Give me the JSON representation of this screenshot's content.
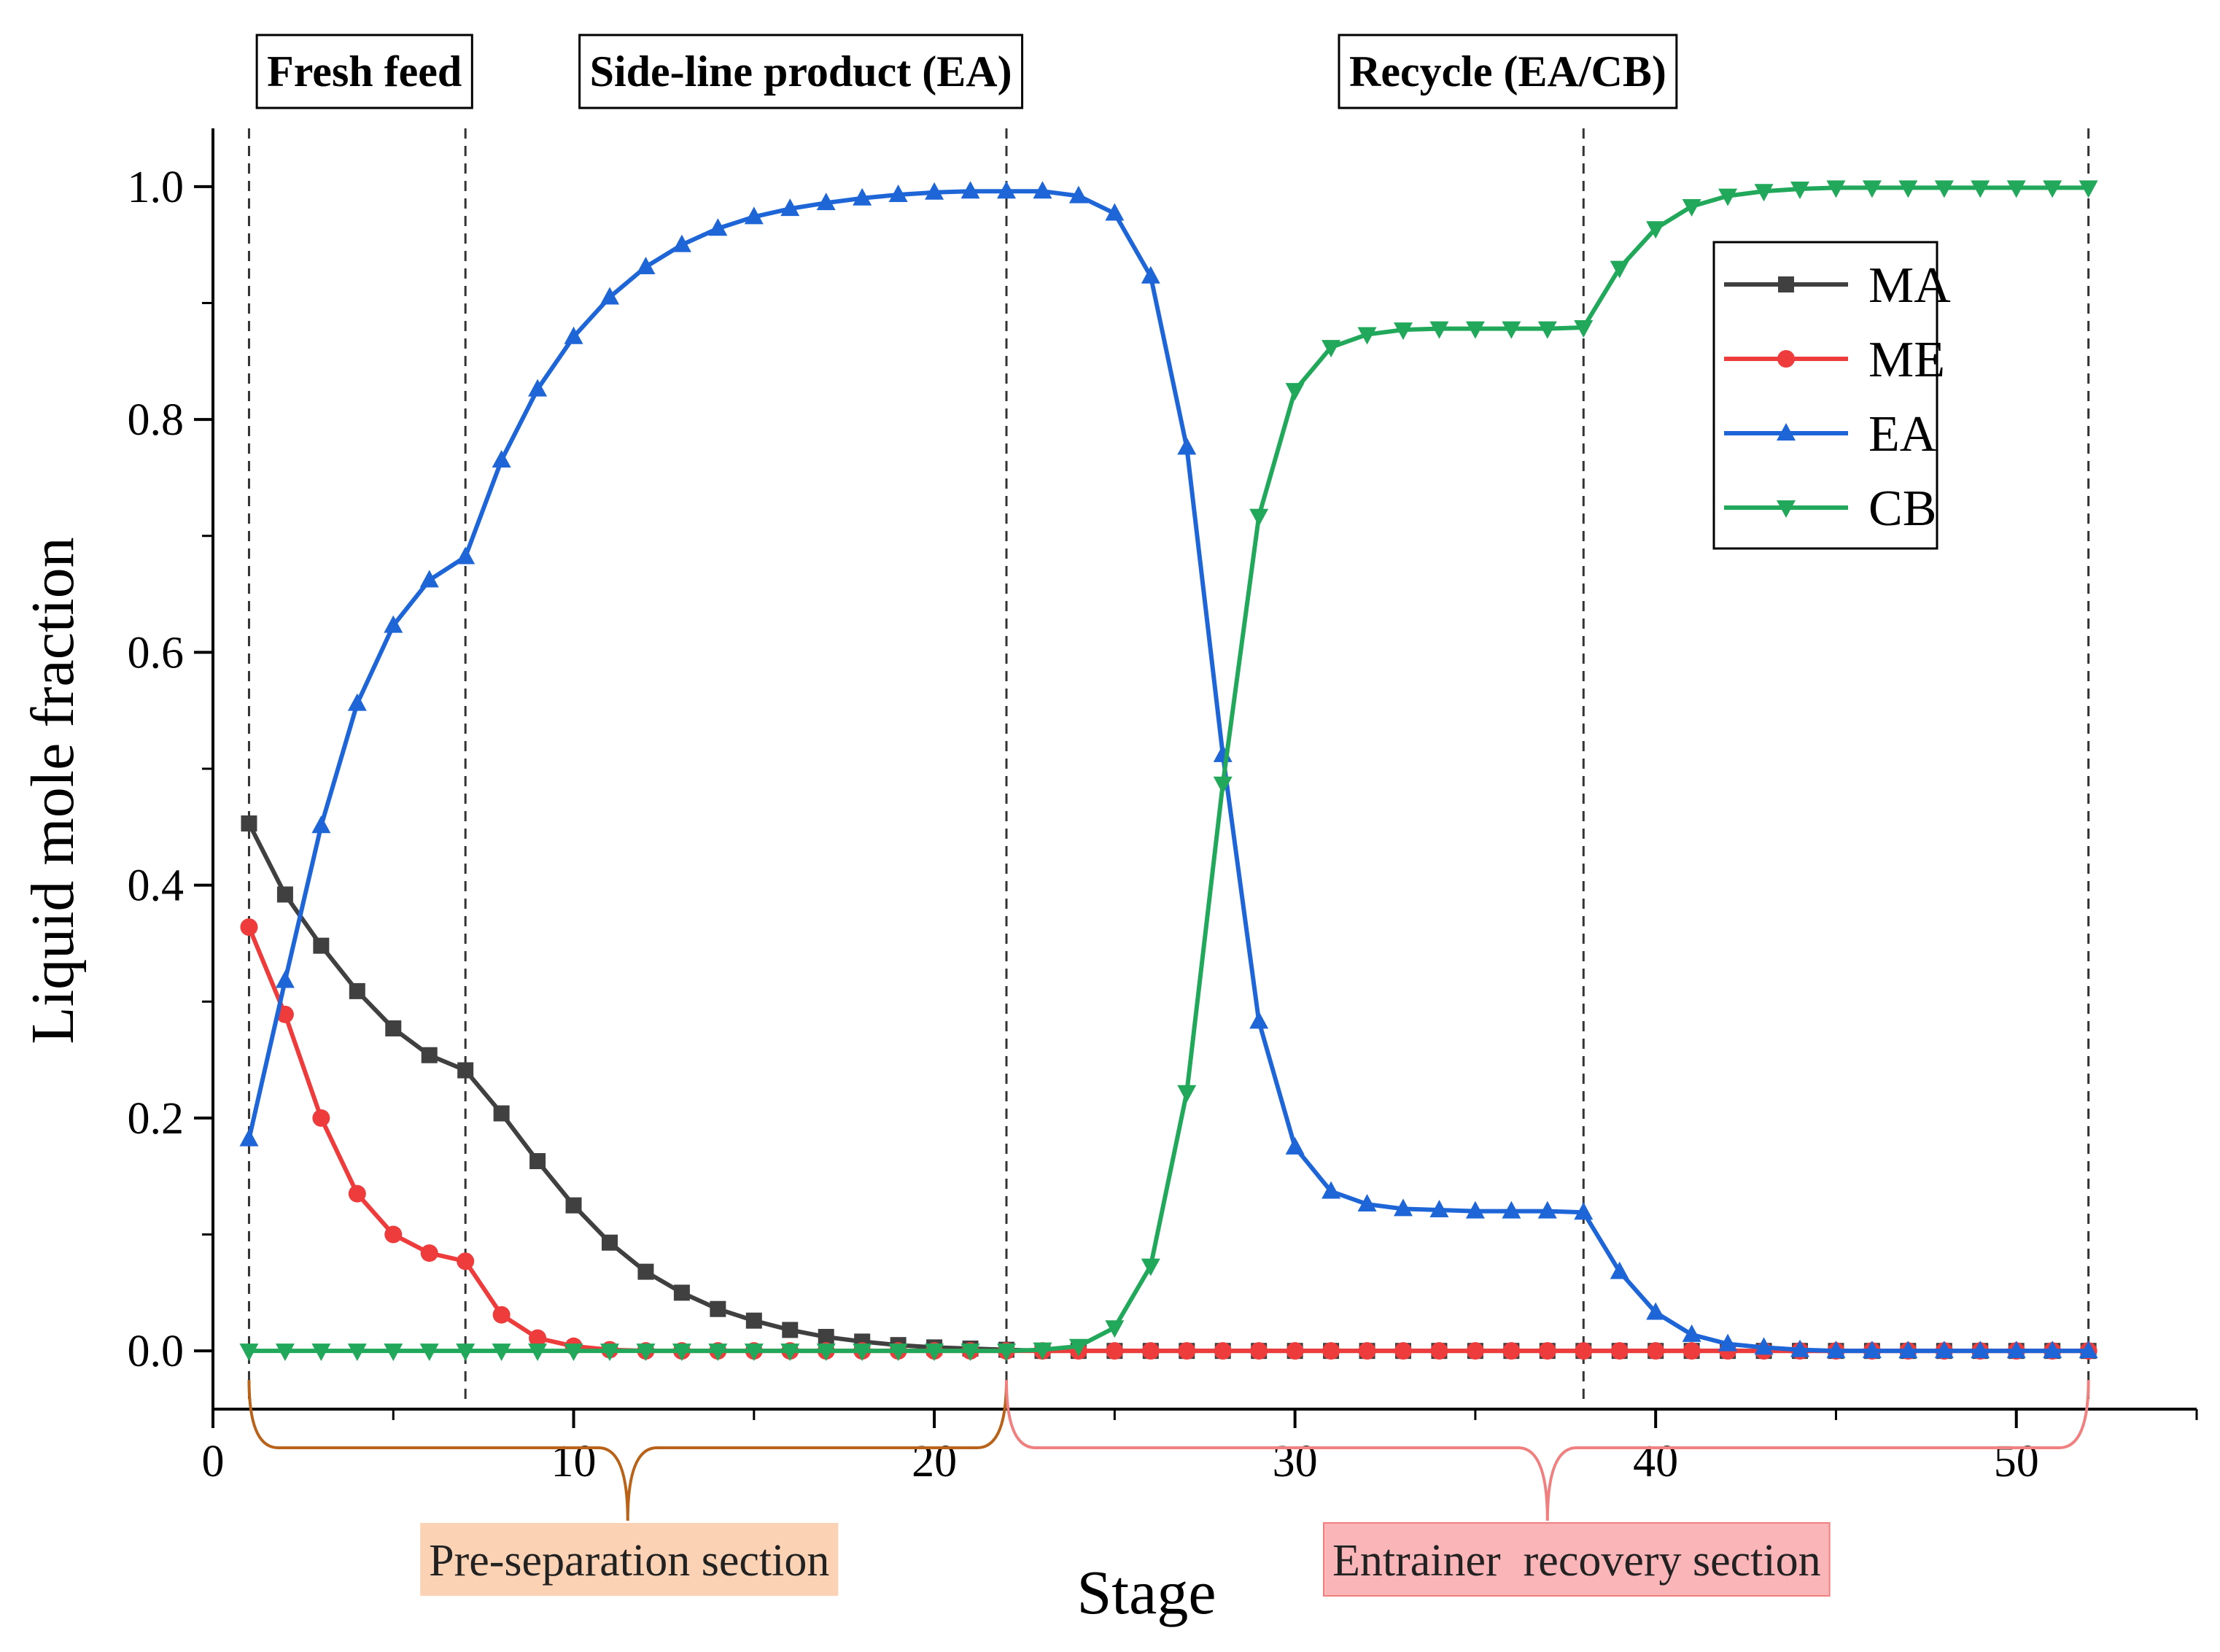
{
  "chart_data": {
    "type": "line",
    "xlabel": "Stage",
    "ylabel": "Liquid mole fraction",
    "xlim": [
      0,
      55
    ],
    "ylim": [
      -0.05,
      1.05
    ],
    "x_ticks": [
      0,
      10,
      20,
      30,
      40,
      50
    ],
    "y_ticks": [
      0.0,
      0.2,
      0.4,
      0.6,
      0.8,
      1.0
    ],
    "y_tick_labels": [
      "0.0",
      "0.2",
      "0.4",
      "0.6",
      "0.8",
      "1.0"
    ],
    "legend_position": "top-right",
    "reference_lines_x": [
      1,
      7,
      22,
      38,
      52
    ],
    "top_annotations": [
      {
        "text": "Fresh feed",
        "x": 7
      },
      {
        "text": "Side-line product (EA)",
        "x": 22
      },
      {
        "text": "Recycle (EA/CB)",
        "x": 38
      }
    ],
    "sections": [
      {
        "label": "Pre-separation section",
        "from": 1,
        "to": 22,
        "color": "#b8621a",
        "fill": "#fbd3b4"
      },
      {
        "label": "Entrainer  recovery section",
        "from": 22,
        "to": 52,
        "color": "#f08080",
        "fill": "#f9b5b8"
      }
    ],
    "x": [
      1,
      2,
      3,
      4,
      5,
      6,
      7,
      8,
      9,
      10,
      11,
      12,
      13,
      14,
      15,
      16,
      17,
      18,
      19,
      20,
      21,
      22,
      23,
      24,
      25,
      26,
      27,
      28,
      29,
      30,
      31,
      32,
      33,
      34,
      35,
      36,
      37,
      38,
      39,
      40,
      41,
      42,
      43,
      44,
      45,
      46,
      47,
      48,
      49,
      50,
      51,
      52
    ],
    "series": [
      {
        "name": "MA",
        "color": "#404040",
        "marker": "square",
        "values": [
          0.453,
          0.392,
          0.348,
          0.309,
          0.277,
          0.254,
          0.241,
          0.204,
          0.163,
          0.125,
          0.093,
          0.068,
          0.05,
          0.036,
          0.026,
          0.018,
          0.012,
          0.008,
          0.005,
          0.003,
          0.002,
          0.001,
          0,
          0,
          0,
          0,
          0,
          0,
          0,
          0,
          0,
          0,
          0,
          0,
          0,
          0,
          0,
          0,
          0,
          0,
          0,
          0,
          0,
          0,
          0,
          0,
          0,
          0,
          0,
          0,
          0,
          0
        ]
      },
      {
        "name": "ME",
        "color": "#ee3b3b",
        "marker": "circle",
        "values": [
          0.364,
          0.289,
          0.2,
          0.135,
          0.1,
          0.084,
          0.077,
          0.031,
          0.011,
          0.004,
          0.001,
          0,
          0,
          0,
          0,
          0,
          0,
          0,
          0,
          0,
          0,
          0,
          0,
          0,
          0,
          0,
          0,
          0,
          0,
          0,
          0,
          0,
          0,
          0,
          0,
          0,
          0,
          0,
          0,
          0,
          0,
          0,
          0,
          0,
          0,
          0,
          0,
          0,
          0,
          0,
          0,
          0
        ]
      },
      {
        "name": "EA",
        "color": "#1e66d8",
        "marker": "triangle-up",
        "values": [
          0.182,
          0.318,
          0.451,
          0.556,
          0.623,
          0.662,
          0.682,
          0.765,
          0.826,
          0.871,
          0.905,
          0.931,
          0.95,
          0.964,
          0.974,
          0.981,
          0.986,
          0.99,
          0.993,
          0.995,
          0.996,
          0.996,
          0.996,
          0.992,
          0.977,
          0.923,
          0.776,
          0.512,
          0.283,
          0.175,
          0.137,
          0.126,
          0.122,
          0.121,
          0.12,
          0.12,
          0.12,
          0.119,
          0.068,
          0.033,
          0.014,
          0.006,
          0.003,
          0.001,
          0,
          0,
          0,
          0,
          0,
          0,
          0,
          0
        ]
      },
      {
        "name": "CB",
        "color": "#22a85a",
        "marker": "triangle-down",
        "values": [
          0,
          0,
          0,
          0,
          0,
          0,
          0,
          0,
          0,
          0,
          0,
          0,
          0,
          0,
          0,
          0,
          0,
          0,
          0,
          0,
          0,
          0,
          0.001,
          0.004,
          0.02,
          0.073,
          0.222,
          0.487,
          0.717,
          0.825,
          0.862,
          0.873,
          0.877,
          0.878,
          0.878,
          0.878,
          0.878,
          0.879,
          0.93,
          0.964,
          0.983,
          0.992,
          0.996,
          0.998,
          0.999,
          0.999,
          0.999,
          0.999,
          0.999,
          0.999,
          0.999,
          0.999
        ]
      }
    ]
  }
}
